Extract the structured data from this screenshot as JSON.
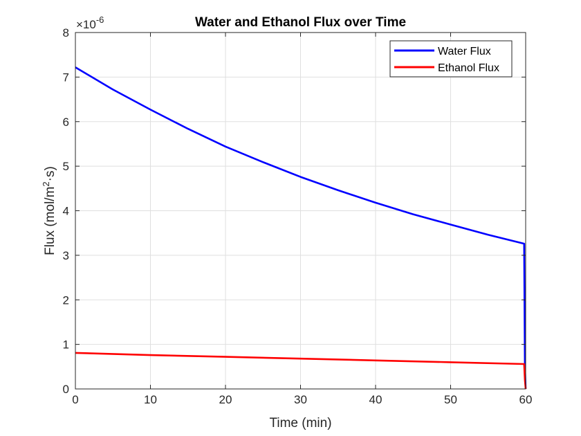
{
  "chart_data": {
    "type": "line",
    "title": "Water and Ethanol Flux over Time",
    "xlabel": "Time (min)",
    "ylabel_main": "Flux (mol/m",
    "ylabel_sup": "2",
    "ylabel_tail": "·s)",
    "exponent_base": "×10",
    "exponent_power": "-6",
    "xlim": [
      0,
      60
    ],
    "ylim": [
      0,
      8
    ],
    "xticks": [
      0,
      10,
      20,
      30,
      40,
      50,
      60
    ],
    "yticks": [
      0,
      1,
      2,
      3,
      4,
      5,
      6,
      7,
      8
    ],
    "grid": true,
    "legend_position": "top-right",
    "series": [
      {
        "name": "Water Flux",
        "color": "#0000ff",
        "x": [
          0,
          5,
          10,
          15,
          20,
          25,
          30,
          35,
          40,
          45,
          50,
          55,
          59.8,
          59.9,
          60
        ],
        "y": [
          7.22,
          6.72,
          6.27,
          5.84,
          5.44,
          5.09,
          4.76,
          4.46,
          4.18,
          3.92,
          3.69,
          3.46,
          3.26,
          0.5,
          0
        ]
      },
      {
        "name": "Ethanol Flux",
        "color": "#ff0000",
        "x": [
          0,
          10,
          20,
          30,
          40,
          50,
          59.8,
          59.9,
          60
        ],
        "y": [
          0.81,
          0.76,
          0.72,
          0.68,
          0.64,
          0.6,
          0.56,
          0.2,
          0
        ]
      }
    ]
  }
}
